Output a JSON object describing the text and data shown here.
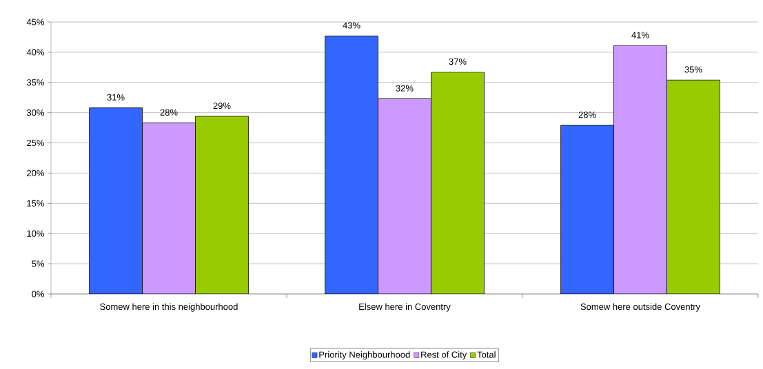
{
  "chart_data": {
    "type": "bar",
    "categories": [
      "Somew here in this neighbourhood",
      "Elsew here in Coventry",
      "Somew here outside Coventry"
    ],
    "series": [
      {
        "name": "Priority Neighbourhood",
        "color": "#3366ff",
        "values": [
          30.8,
          42.7,
          27.9
        ],
        "value_labels": [
          "31%",
          "43%",
          "28%"
        ]
      },
      {
        "name": "Rest of City",
        "color": "#cc99ff",
        "values": [
          28.3,
          32.3,
          41.1
        ],
        "value_labels": [
          "28%",
          "32%",
          "41%"
        ]
      },
      {
        "name": "Total",
        "color": "#99cc00",
        "values": [
          29.4,
          36.7,
          35.4
        ],
        "value_labels": [
          "29%",
          "37%",
          "35%"
        ]
      }
    ],
    "ylim": [
      0,
      45
    ],
    "yticks": [
      {
        "value": 0,
        "label": "0%"
      },
      {
        "value": 5,
        "label": "5%"
      },
      {
        "value": 10,
        "label": "10%"
      },
      {
        "value": 15,
        "label": "15%"
      },
      {
        "value": 20,
        "label": "20%"
      },
      {
        "value": 25,
        "label": "25%"
      },
      {
        "value": 30,
        "label": "30%"
      },
      {
        "value": 35,
        "label": "35%"
      },
      {
        "value": 40,
        "label": "40%"
      },
      {
        "value": 45,
        "label": "45%"
      }
    ],
    "grid": "y",
    "legend": "bottom"
  }
}
